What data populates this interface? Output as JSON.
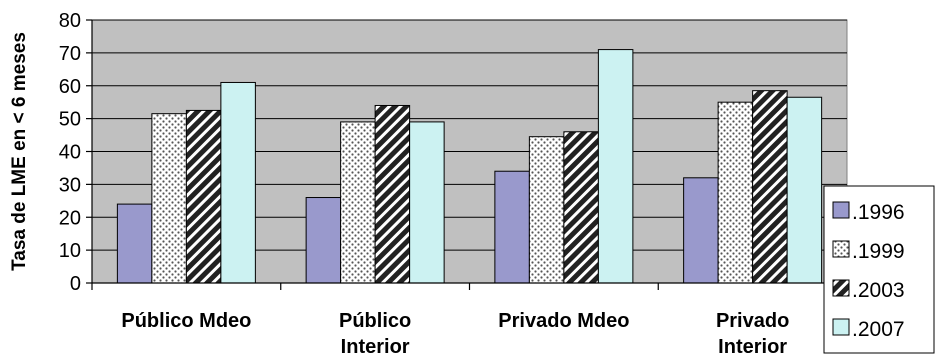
{
  "chart_data": {
    "type": "bar",
    "ylabel": "Tasa de LME en < 6 meses",
    "ylim": [
      0,
      80
    ],
    "yticks": [
      0,
      10,
      20,
      30,
      40,
      50,
      60,
      70,
      80
    ],
    "grid": true,
    "legend_position": "right",
    "categories": [
      [
        "Público Mdeo"
      ],
      [
        "Público",
        "Interior"
      ],
      [
        "Privado Mdeo"
      ],
      [
        "Privado",
        "Interior"
      ]
    ],
    "series": [
      {
        "name": ".1996",
        "values": [
          24,
          26,
          34,
          32
        ],
        "color": "#9999cc",
        "pattern": "solid"
      },
      {
        "name": ".1999",
        "values": [
          51.5,
          49,
          44.5,
          55
        ],
        "color": "#ffffff",
        "pattern": "dots"
      },
      {
        "name": ".2003",
        "values": [
          52.5,
          54,
          46,
          58.5
        ],
        "color": "#333333",
        "pattern": "stripes"
      },
      {
        "name": ".2007",
        "values": [
          61,
          49,
          71,
          56.5
        ],
        "color": "#ccf2f2",
        "pattern": "solid"
      }
    ],
    "plot_background": "#c0c0c0"
  }
}
